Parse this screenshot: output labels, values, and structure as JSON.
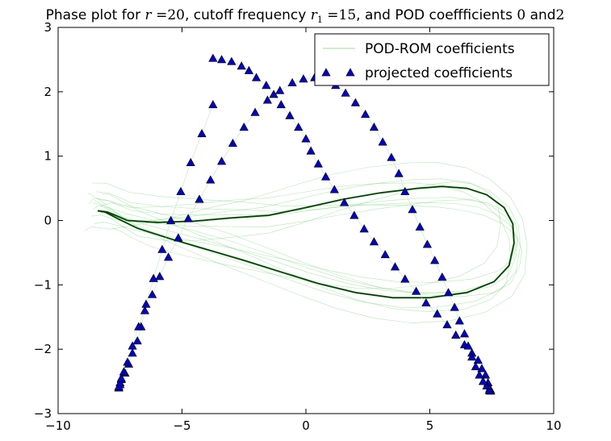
{
  "chart_data": {
    "type": "line",
    "title": "Phase plot for r =20, cutoff frequency r₁ =15, and POD coeffficients 0 and2",
    "title_parts": {
      "prefix": "Phase plot for ",
      "var_r": "r",
      "eq1": " =20",
      "mid": ", cutoff frequency ",
      "var_r1": "r",
      "sub1": "1",
      "eq2": " =15",
      "tail": ", and POD coeffficients ",
      "num0": "0",
      "and": " and",
      "num2": "2"
    },
    "xlabel": "",
    "ylabel": "",
    "xlim": [
      -10,
      10
    ],
    "ylim": [
      -3,
      3
    ],
    "xticks": [
      -10,
      -5,
      0,
      5,
      10
    ],
    "yticks": [
      -3,
      -2,
      -1,
      0,
      1,
      2,
      3
    ],
    "xtick_labels": [
      "−10",
      "−5",
      "0",
      "5",
      "10"
    ],
    "ytick_labels": [
      "−3",
      "−2",
      "−1",
      "0",
      "1",
      "2",
      "3"
    ],
    "grid": false,
    "legend_position": "top-right",
    "legend": [
      {
        "label": "POD-ROM coefficients",
        "marker": "line",
        "color": "#2ca02c"
      },
      {
        "label": "projected coefficients",
        "marker": "triangle",
        "color": "#0000cc"
      }
    ],
    "series": [
      {
        "name": "POD-ROM coefficients",
        "style": "line",
        "color": "#1a7a1a",
        "x": [
          -8.4,
          -8.0,
          -7.2,
          -6.0,
          -4.5,
          -3.0,
          -1.5,
          0.0,
          1.5,
          3.0,
          4.5,
          5.5,
          6.5,
          7.3,
          8.0,
          8.35,
          8.4,
          8.2,
          7.6,
          6.5,
          5.0,
          3.5,
          2.0,
          0.5,
          -1.0,
          -2.5,
          -4.0,
          -5.5,
          -6.8,
          -7.6,
          -8.1,
          -8.4
        ],
        "y": [
          0.15,
          0.13,
          0.0,
          -0.03,
          -0.01,
          0.04,
          0.08,
          0.2,
          0.33,
          0.43,
          0.5,
          0.53,
          0.5,
          0.4,
          0.2,
          -0.05,
          -0.35,
          -0.7,
          -0.95,
          -1.12,
          -1.2,
          -1.2,
          -1.12,
          -0.98,
          -0.8,
          -0.62,
          -0.45,
          -0.28,
          -0.12,
          0.03,
          0.13,
          0.15
        ]
      },
      {
        "name": "projected coefficients",
        "style": "triangle",
        "color": "#0000cc",
        "x": [
          -3.75,
          -3.4,
          -3.0,
          -2.6,
          -2.3,
          -2.0,
          -1.6,
          -1.3,
          -1.0,
          -0.65,
          -0.3,
          0.0,
          0.2,
          0.5,
          0.8,
          1.15,
          1.55,
          1.95,
          2.35,
          2.75,
          3.2,
          3.6,
          4.0,
          4.45,
          4.85,
          5.3,
          5.7,
          6.05,
          6.4,
          6.7,
          6.95,
          7.1,
          7.25,
          7.35,
          7.42,
          7.46,
          7.45,
          7.4,
          7.3,
          7.15,
          7.0,
          6.85,
          6.7,
          6.55,
          6.4,
          6.2,
          6.0,
          5.75,
          5.5,
          5.2,
          4.9,
          4.6,
          4.3,
          4.0,
          3.75,
          3.45,
          3.1,
          2.75,
          2.4,
          2.0,
          1.6,
          1.2,
          0.8,
          0.35,
          -0.1,
          -0.55,
          -1.05,
          -1.55,
          -2.05,
          -2.5,
          -2.95,
          -3.4,
          -3.85,
          -4.3,
          -4.75,
          -5.15,
          -5.55,
          -5.9,
          -6.2,
          -6.5,
          -6.65,
          -6.8,
          -7.0,
          -7.15,
          -7.3,
          -7.45,
          -7.5,
          -7.55,
          -7.55,
          -7.55,
          -7.5,
          -7.45,
          -7.35,
          -7.2,
          -7.0,
          -6.75,
          -6.45,
          -6.15,
          -5.8,
          -5.45,
          -5.05,
          -4.65,
          -4.2,
          -3.75
        ],
        "y": [
          2.52,
          2.5,
          2.47,
          2.4,
          2.33,
          2.22,
          2.1,
          1.96,
          1.8,
          1.63,
          1.45,
          1.27,
          1.08,
          0.88,
          0.68,
          0.48,
          0.28,
          0.08,
          -0.13,
          -0.33,
          -0.53,
          -0.72,
          -0.91,
          -1.1,
          -1.28,
          -1.45,
          -1.62,
          -1.78,
          -1.93,
          -2.06,
          -2.17,
          -2.3,
          -2.4,
          -2.52,
          -2.61,
          -2.64,
          -2.65,
          -2.64,
          -2.57,
          -2.5,
          -2.4,
          -2.27,
          -2.12,
          -1.95,
          -1.76,
          -1.56,
          -1.35,
          -1.12,
          -0.88,
          -0.62,
          -0.37,
          -0.1,
          0.17,
          0.45,
          0.73,
          0.98,
          1.22,
          1.45,
          1.65,
          1.83,
          1.98,
          2.1,
          2.18,
          2.22,
          2.2,
          2.14,
          2.02,
          1.87,
          1.68,
          1.45,
          1.2,
          0.92,
          0.63,
          0.33,
          0.03,
          -0.27,
          -0.57,
          -0.87,
          -1.15,
          -1.4,
          -1.65,
          -1.87,
          -2.06,
          -2.23,
          -2.37,
          -2.47,
          -2.55,
          -2.6,
          -2.6,
          -2.58,
          -2.52,
          -2.45,
          -2.35,
          -2.2,
          -1.95,
          -1.65,
          -1.3,
          -0.9,
          -0.45,
          0.0,
          0.45,
          0.9,
          1.35,
          1.8
        ]
      }
    ]
  }
}
